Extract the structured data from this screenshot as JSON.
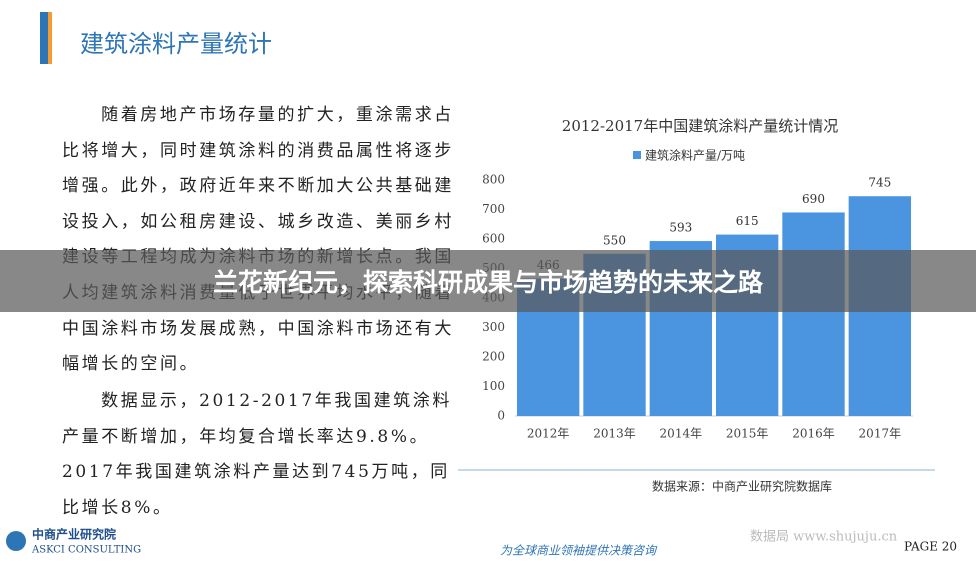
{
  "header": {
    "title": "建筑涂料产量统计"
  },
  "body": {
    "paragraphs": [
      "随着房地产市场存量的扩大，重涂需求占比将增大，同时建筑涂料的消费品属性将逐步增强。此外，政府近年来不断加大公共基础建设投入，如公租房建设、城乡改造、美丽乡村建设等工程均成为涂料市场的新增长点。我国人均建筑涂料消费量低于世界平均水平，随着中国涂料市场发展成熟，中国涂料市场还有大幅增长的空间。",
      "数据显示，2012-2017年我国建筑涂料产量不断增加，年均复合增长率达9.8%。2017年我国建筑涂料产量达到745万吨，同比增长8%。"
    ]
  },
  "chart_data": {
    "type": "bar",
    "title": "2012-2017年中国建筑涂料产量统计情况",
    "categories": [
      "2012年",
      "2013年",
      "2014年",
      "2015年",
      "2016年",
      "2017年"
    ],
    "series": [
      {
        "name": "建筑涂料产量/万吨",
        "color": "#4a94e0",
        "values": [
          466,
          550,
          593,
          615,
          690,
          745
        ]
      }
    ],
    "ylim": [
      0,
      800
    ],
    "yticks": [
      0,
      100,
      200,
      300,
      400,
      500,
      600,
      700,
      800
    ],
    "grid": false,
    "legend": "top",
    "source": "数据来源：中商产业研究院数据库"
  },
  "footer": {
    "logo_cn": "中商产业研究院",
    "logo_en": "ASKCI CONSULTING",
    "slogan": "为全球商业领袖提供决策咨询",
    "watermark": "数据局 www.shujuju.cn",
    "page": "PAGE 20"
  },
  "banner": {
    "text": "兰花新纪元，探索科研成果与市场趋势的未来之路"
  }
}
